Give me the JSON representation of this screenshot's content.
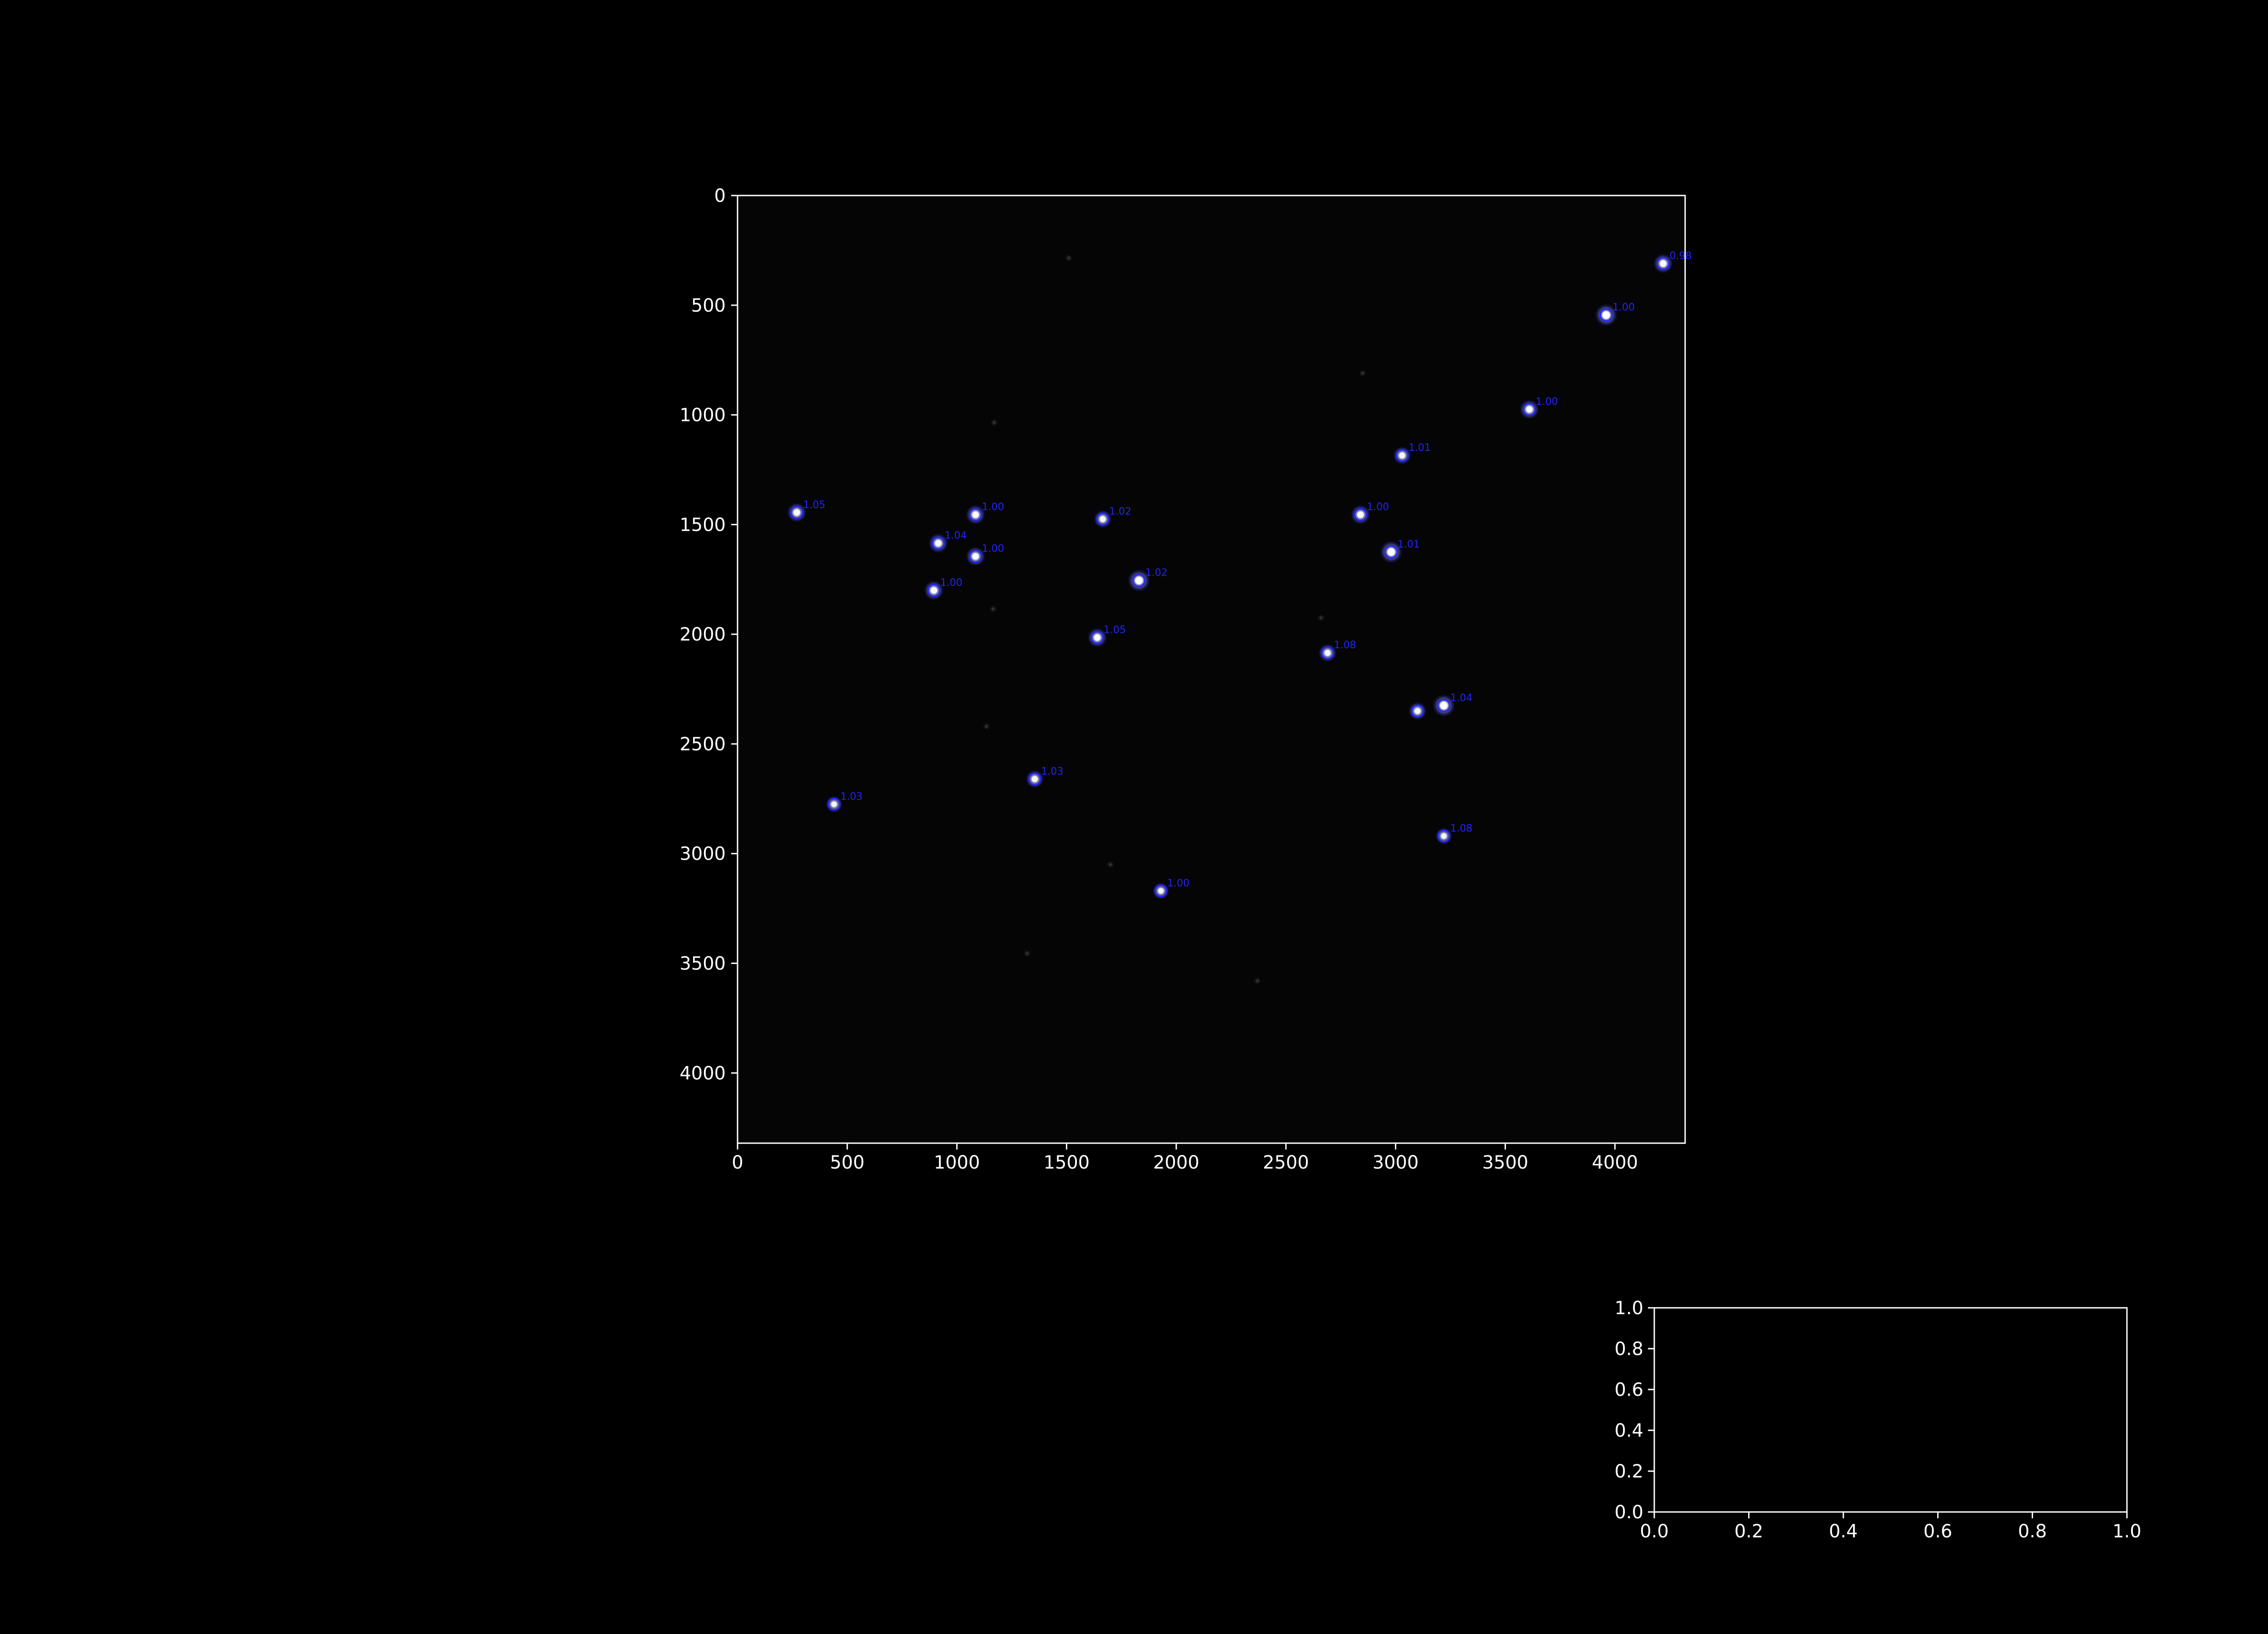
{
  "colors": {
    "background": "#000000",
    "axes_fg": "#ffffff",
    "marker": "#2222ff",
    "star_core": "#ffffff",
    "faint_star": "#2a2a2a"
  },
  "chart_data": [
    {
      "type": "scatter",
      "title": "",
      "xlabel": "",
      "ylabel": "",
      "xlim": [
        0,
        4320
      ],
      "ylim": [
        4320,
        0
      ],
      "y_inverted": true,
      "grid": false,
      "x_ticks": [
        0,
        500,
        1000,
        1500,
        2000,
        2500,
        3000,
        3500,
        4000
      ],
      "y_ticks": [
        0,
        500,
        1000,
        1500,
        2000,
        2500,
        3000,
        3500,
        4000
      ],
      "x_tick_labels": [
        "0",
        "500",
        "1000",
        "1500",
        "2000",
        "2500",
        "3000",
        "3500",
        "4000"
      ],
      "y_tick_labels": [
        "0",
        "500",
        "1000",
        "1500",
        "2000",
        "2500",
        "3000",
        "3500",
        "4000"
      ],
      "points": [
        {
          "x": 4220,
          "y": 310,
          "label": "0.98",
          "brightness": 0.8
        },
        {
          "x": 3960,
          "y": 545,
          "label": "1.00",
          "brightness": 1.0
        },
        {
          "x": 3610,
          "y": 975,
          "label": "1.00",
          "brightness": 0.8
        },
        {
          "x": 3030,
          "y": 1185,
          "label": "1.01",
          "brightness": 0.7
        },
        {
          "x": 270,
          "y": 1445,
          "label": "1.05",
          "brightness": 0.8
        },
        {
          "x": 1085,
          "y": 1455,
          "label": "1.00",
          "brightness": 0.8
        },
        {
          "x": 1665,
          "y": 1475,
          "label": "1.02",
          "brightness": 0.7
        },
        {
          "x": 2840,
          "y": 1455,
          "label": "1.00",
          "brightness": 0.8
        },
        {
          "x": 915,
          "y": 1585,
          "label": "1.04",
          "brightness": 0.8
        },
        {
          "x": 1085,
          "y": 1645,
          "label": "1.00",
          "brightness": 0.8
        },
        {
          "x": 2980,
          "y": 1625,
          "label": "1.01",
          "brightness": 1.0
        },
        {
          "x": 1830,
          "y": 1755,
          "label": "1.02",
          "brightness": 1.0
        },
        {
          "x": 895,
          "y": 1800,
          "label": "1.00",
          "brightness": 0.8
        },
        {
          "x": 1640,
          "y": 2015,
          "label": "1.05",
          "brightness": 0.8
        },
        {
          "x": 2690,
          "y": 2085,
          "label": "1.08",
          "brightness": 0.7
        },
        {
          "x": 3220,
          "y": 2325,
          "label": "1.04",
          "brightness": 1.0
        },
        {
          "x": 3100,
          "y": 2350,
          "label": "",
          "brightness": 0.7
        },
        {
          "x": 1355,
          "y": 2660,
          "label": "1.03",
          "brightness": 0.7
        },
        {
          "x": 440,
          "y": 2775,
          "label": "1.03",
          "brightness": 0.6
        },
        {
          "x": 3220,
          "y": 2920,
          "label": "1.08",
          "brightness": 0.6
        },
        {
          "x": 1930,
          "y": 3170,
          "label": "1.00",
          "brightness": 0.6
        }
      ],
      "faint_sources": [
        {
          "x": 1510,
          "y": 285
        },
        {
          "x": 2850,
          "y": 810
        },
        {
          "x": 1170,
          "y": 1035
        },
        {
          "x": 1165,
          "y": 1885
        },
        {
          "x": 1135,
          "y": 2420
        },
        {
          "x": 1320,
          "y": 3455
        },
        {
          "x": 2370,
          "y": 3580
        },
        {
          "x": 2660,
          "y": 1925
        },
        {
          "x": 1700,
          "y": 3050
        }
      ]
    },
    {
      "type": "scatter",
      "title": "",
      "xlabel": "",
      "ylabel": "",
      "xlim": [
        0.0,
        1.0
      ],
      "ylim": [
        0.0,
        1.0
      ],
      "grid": false,
      "x_ticks": [
        0.0,
        0.2,
        0.4,
        0.6,
        0.8,
        1.0
      ],
      "y_ticks": [
        0.0,
        0.2,
        0.4,
        0.6,
        0.8,
        1.0
      ],
      "x_tick_labels": [
        "0.0",
        "0.2",
        "0.4",
        "0.6",
        "0.8",
        "1.0"
      ],
      "y_tick_labels": [
        "0.0",
        "0.2",
        "0.4",
        "0.6",
        "0.8",
        "1.0"
      ],
      "points": []
    }
  ]
}
